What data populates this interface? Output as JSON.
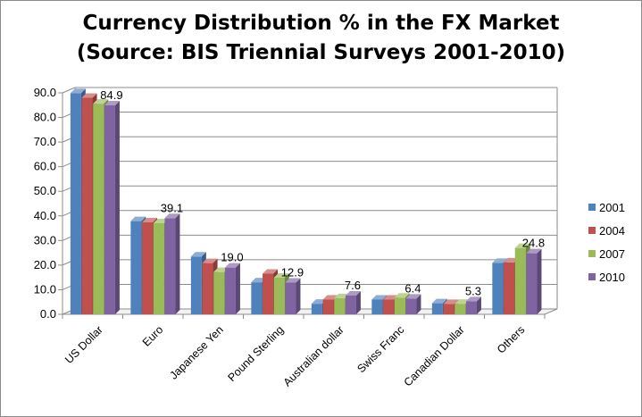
{
  "chart_data": {
    "type": "bar",
    "title_lines": [
      "Currency Distribution % in the FX Market",
      "(Source: BIS Triennial Surveys 2001-2010)"
    ],
    "categories": [
      "US Dollar",
      "Euro",
      "Japanese Yen",
      "Pound Sterling",
      "Australian dollar",
      "Swiss Franc",
      "Canadian Dollar",
      "Others"
    ],
    "series": [
      {
        "name": "2001",
        "color": "#4f81bd",
        "values": [
          89.9,
          37.9,
          23.5,
          13.0,
          4.3,
          6.0,
          4.5,
          20.9
        ]
      },
      {
        "name": "2004",
        "color": "#c0504d",
        "values": [
          88.0,
          37.4,
          20.8,
          16.5,
          6.0,
          6.0,
          4.2,
          21.1
        ]
      },
      {
        "name": "2007",
        "color": "#9bbb59",
        "values": [
          85.6,
          37.0,
          17.2,
          14.9,
          6.6,
          6.8,
          4.3,
          27.0
        ]
      },
      {
        "name": "2010",
        "color": "#8064a2",
        "values": [
          84.9,
          39.1,
          19.0,
          12.9,
          7.6,
          6.4,
          5.3,
          24.8
        ]
      }
    ],
    "data_labels": [
      "84.9",
      "39.1",
      "19.0",
      "12.9",
      "7.6",
      "6.4",
      "5.3",
      "24.8"
    ],
    "y_ticks": [
      "0.0",
      "10.0",
      "20.0",
      "30.0",
      "40.0",
      "50.0",
      "60.0",
      "70.0",
      "80.0",
      "90.0"
    ],
    "ylim": [
      0,
      90
    ],
    "grid": true,
    "legend_position": "right",
    "three_d": true
  }
}
